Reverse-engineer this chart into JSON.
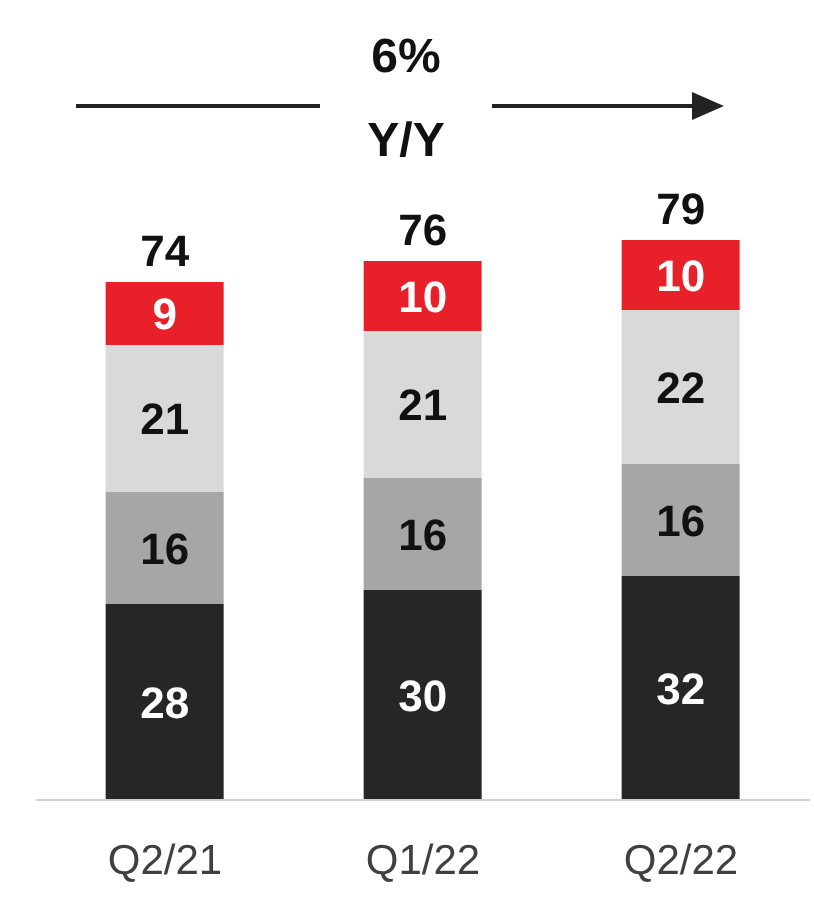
{
  "chart_data": {
    "type": "bar",
    "stacked": true,
    "data_labels": true,
    "categories": [
      "Q2/21",
      "Q1/22",
      "Q2/22"
    ],
    "series": [
      {
        "color": "#262626",
        "values": [
          28,
          30,
          32
        ]
      },
      {
        "color": "#a6a6a6",
        "values": [
          16,
          16,
          16
        ]
      },
      {
        "color": "#d9d9d9",
        "values": [
          21,
          21,
          22
        ]
      },
      {
        "color": "#e8202a",
        "values": [
          9,
          10,
          10
        ]
      }
    ],
    "totals": [
      "74",
      "76",
      "79"
    ],
    "annotations": [
      "6%",
      "Y/Y"
    ],
    "legend": false,
    "grid": false
  }
}
